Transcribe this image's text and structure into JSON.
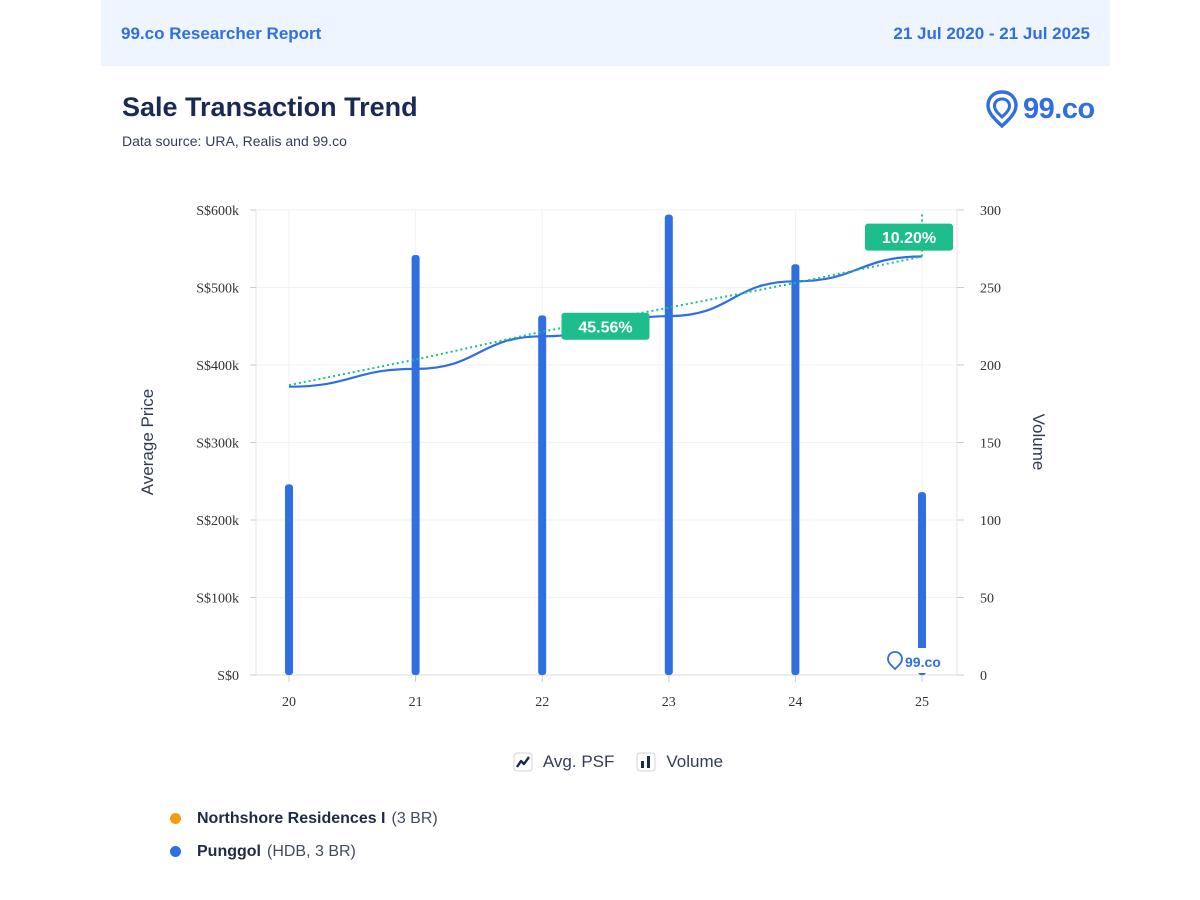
{
  "header": {
    "report_label": "99.co Researcher Report",
    "date_range": "21 Jul 2020 - 21 Jul 2025"
  },
  "title": "Sale Transaction Trend",
  "subtitle": "Data source: URA, Realis and 99.co",
  "logo": {
    "text": "99.co",
    "icon": "location-pin-icon"
  },
  "watermark": {
    "text": "99.co",
    "icon": "location-pin-icon"
  },
  "legend": [
    {
      "label": "Avg. PSF",
      "icon": "line-chart-icon"
    },
    {
      "label": "Volume",
      "icon": "bar-chart-icon"
    }
  ],
  "series_list": [
    {
      "name": "Northshore Residences I",
      "detail": "(3 BR)",
      "color": "#f39c12"
    },
    {
      "name": "Punggol",
      "detail": "(HDB, 3 BR)",
      "color": "#2f6fe0"
    }
  ],
  "colors": {
    "accent": "#2f6fe0",
    "trend": "#1dbe8b",
    "badge": "#1dbe8b"
  },
  "chart_data": {
    "type": "bar",
    "categories": [
      "20",
      "21",
      "22",
      "23",
      "24",
      "25"
    ],
    "ylabel": "Average Price",
    "y2label": "Volume",
    "ylim": [
      0,
      600000
    ],
    "y2lim": [
      0,
      300
    ],
    "y_ticks": [
      "S$0",
      "S$100k",
      "S$200k",
      "S$300k",
      "S$400k",
      "S$500k",
      "S$600k"
    ],
    "y2_ticks": [
      "0",
      "50",
      "100",
      "150",
      "200",
      "250",
      "300"
    ],
    "series": [
      {
        "type": "bar",
        "axis": "right",
        "values": [
          123,
          271,
          232,
          297,
          265,
          118
        ]
      },
      {
        "type": "line",
        "axis": "left",
        "values": [
          372000,
          395000,
          437000,
          463000,
          508000,
          540000
        ]
      },
      {
        "type": "trendline",
        "axis": "left",
        "style": "dotted",
        "values": [
          374000,
          407000,
          443000,
          474000,
          506000,
          540000
        ]
      }
    ],
    "annotations": [
      {
        "text": "45.56%",
        "x": "22.5",
        "y": 450000
      },
      {
        "text": "10.20%",
        "x": "25",
        "y": 565000
      }
    ],
    "grid": true
  }
}
